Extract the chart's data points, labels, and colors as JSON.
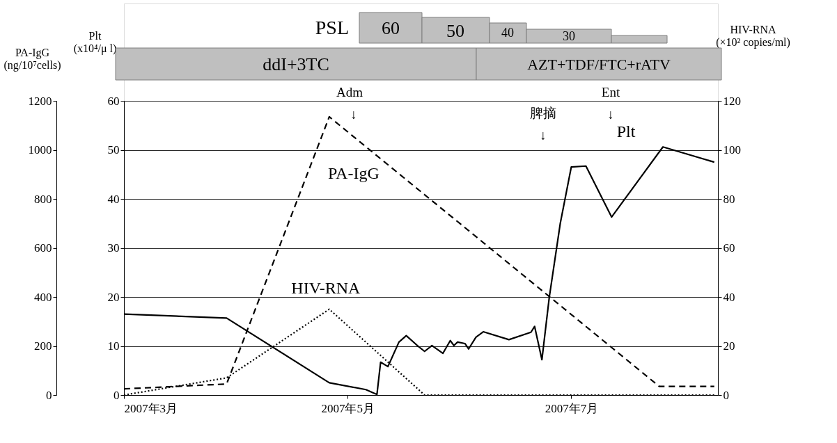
{
  "chart_data": {
    "type": "line",
    "xlim": [
      "2007-03-01",
      "2007-08-10"
    ],
    "xticks": [
      {
        "value": "2007-03-01",
        "label": "2007年3月"
      },
      {
        "value": "2007-05-01",
        "label": "2007年5月"
      },
      {
        "value": "2007-07-01",
        "label": "2007年7月"
      }
    ],
    "ylabel": "PA-IgG (ng/10⁷cells)",
    "ylim": [
      0,
      1200
    ],
    "yticks": [
      0,
      200,
      400,
      600,
      800,
      1000,
      1200
    ],
    "y3label": "Plt (x10⁴/μ l)",
    "y3lim": [
      0,
      60
    ],
    "y3ticks": [
      0,
      10,
      20,
      30,
      40,
      50,
      60
    ],
    "y2label": "HIV-RNA (×10² copies/ml)",
    "y2lim": [
      0,
      120
    ],
    "y2ticks": [
      0,
      20,
      40,
      60,
      80,
      100,
      120
    ],
    "grid": "y",
    "series": [
      {
        "name": "Plt",
        "color": "#000000",
        "axis": "y3",
        "line_style": "solid",
        "x": [
          "2007-03-01",
          "2007-03-29",
          "2007-04-26",
          "2007-05-06",
          "2007-05-09",
          "2007-05-10",
          "2007-05-12",
          "2007-05-15",
          "2007-05-17",
          "2007-05-20",
          "2007-05-22",
          "2007-05-24",
          "2007-05-27",
          "2007-05-29",
          "2007-05-30",
          "2007-05-31",
          "2007-06-02",
          "2007-06-03",
          "2007-06-05",
          "2007-06-07",
          "2007-06-14",
          "2007-06-20",
          "2007-06-21",
          "2007-06-23",
          "2007-06-25",
          "2007-06-28",
          "2007-07-01",
          "2007-07-05",
          "2007-07-12",
          "2007-07-26",
          "2007-08-09"
        ],
        "values": [
          16.5,
          15.7,
          2.5,
          1.1,
          0.1,
          6.7,
          5.8,
          10.8,
          12.1,
          10.1,
          8.9,
          10.1,
          8.5,
          11.1,
          10.1,
          10.8,
          10.5,
          9.4,
          11.8,
          12.9,
          11.3,
          12.8,
          14.0,
          7.2,
          19.9,
          35.0,
          46.5,
          46.7,
          36.3,
          50.6,
          47.5
        ]
      },
      {
        "name": "PA-IgG",
        "color": "#000000",
        "axis": "y",
        "line_style": "dashed",
        "x": [
          "2007-03-01",
          "2007-03-29",
          "2007-04-26",
          "2007-07-25",
          "2007-08-09"
        ],
        "values": [
          25,
          45,
          1135,
          35,
          35
        ]
      },
      {
        "name": "HIV-RNA",
        "color": "#000000",
        "axis": "y2",
        "line_style": "dotted",
        "x": [
          "2007-03-01",
          "2007-03-29",
          "2007-04-26",
          "2007-05-22",
          "2007-08-09"
        ],
        "values": [
          0,
          7,
          35,
          0,
          0
        ]
      }
    ],
    "annotations": [
      "PSL",
      "60",
      "50",
      "40",
      "30",
      "ddI+3TC",
      "AZT+TDF/FTC+rATV",
      "Adm",
      "↓",
      "脾摘",
      "↓",
      "Ent",
      "↓"
    ]
  }
}
